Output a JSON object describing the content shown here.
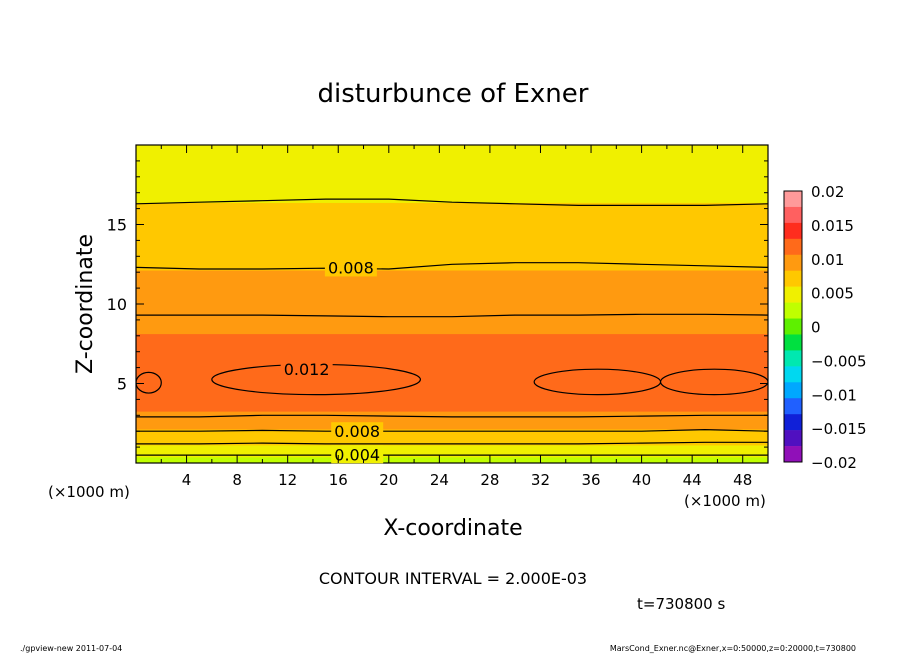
{
  "chart_data": {
    "type": "heatmap",
    "title": "disturbunce of Exner",
    "xlabel": "X-coordinate",
    "ylabel": "Z-coordinate",
    "x_unit": "(×1000 m)",
    "y_unit": "(×1000 m)",
    "xlim": [
      0,
      50
    ],
    "ylim": [
      0,
      20
    ],
    "x_ticks": [
      4,
      8,
      12,
      16,
      20,
      24,
      28,
      32,
      36,
      40,
      44,
      48
    ],
    "y_ticks": [
      5,
      10,
      15
    ],
    "contour_interval_text": "CONTOUR INTERVAL = 2.000E-03",
    "time_text": "t=730800 s",
    "contour_labels": [
      {
        "text": "0.008",
        "x": 17,
        "z": 12.3
      },
      {
        "text": "0.012",
        "x": 13.5,
        "z": 5.9
      },
      {
        "text": "0.008",
        "x": 17.5,
        "z": 2.0
      },
      {
        "text": "0.004",
        "x": 17.5,
        "z": 0.55
      }
    ],
    "profile": [
      {
        "z": 0.0,
        "v": 0.001
      },
      {
        "z": 0.5,
        "v": 0.004
      },
      {
        "z": 1.0,
        "v": 0.0055
      },
      {
        "z": 1.5,
        "v": 0.007
      },
      {
        "z": 2.0,
        "v": 0.008
      },
      {
        "z": 2.6,
        "v": 0.0095
      },
      {
        "z": 3.2,
        "v": 0.0105
      },
      {
        "z": 4.0,
        "v": 0.0115
      },
      {
        "z": 5.0,
        "v": 0.0118
      },
      {
        "z": 6.0,
        "v": 0.0117
      },
      {
        "z": 7.0,
        "v": 0.0113
      },
      {
        "z": 8.0,
        "v": 0.0107
      },
      {
        "z": 9.0,
        "v": 0.01
      },
      {
        "z": 10.0,
        "v": 0.0096
      },
      {
        "z": 11.0,
        "v": 0.009
      },
      {
        "z": 12.0,
        "v": 0.0083
      },
      {
        "z": 13.0,
        "v": 0.0077
      },
      {
        "z": 14.0,
        "v": 0.0071
      },
      {
        "z": 15.0,
        "v": 0.0066
      },
      {
        "z": 16.0,
        "v": 0.0061
      },
      {
        "z": 17.0,
        "v": 0.0056
      },
      {
        "z": 18.0,
        "v": 0.0053
      },
      {
        "z": 19.0,
        "v": 0.005
      },
      {
        "z": 20.0,
        "v": 0.0048
      }
    ],
    "contour_levels": [
      {
        "level": 0.004,
        "z": [
          0.5,
          0.5,
          0.5,
          0.5,
          0.5,
          0.5,
          0.5,
          0.5,
          0.5,
          0.5,
          0.5
        ]
      },
      {
        "level": 0.006,
        "z": [
          1.2,
          1.2,
          1.25,
          1.2,
          1.2,
          1.2,
          1.2,
          1.2,
          1.25,
          1.3,
          1.3
        ]
      },
      {
        "level": 0.008,
        "z": [
          2.0,
          2.0,
          2.05,
          2.0,
          2.0,
          2.0,
          2.0,
          2.0,
          2.0,
          2.1,
          2.0
        ]
      },
      {
        "level": 0.01,
        "z": [
          2.9,
          2.9,
          3.0,
          3.0,
          2.95,
          2.9,
          2.9,
          2.9,
          2.95,
          3.0,
          3.0
        ]
      },
      {
        "level": 0.01,
        "z": [
          9.3,
          9.3,
          9.3,
          9.25,
          9.2,
          9.2,
          9.3,
          9.3,
          9.35,
          9.35,
          9.3
        ]
      },
      {
        "level": 0.008,
        "z": [
          12.3,
          12.2,
          12.2,
          12.25,
          12.2,
          12.5,
          12.6,
          12.6,
          12.5,
          12.4,
          12.3
        ]
      },
      {
        "level": 0.006,
        "z": [
          16.3,
          16.4,
          16.5,
          16.6,
          16.6,
          16.4,
          16.3,
          16.2,
          16.2,
          16.2,
          16.3
        ]
      }
    ],
    "blobs_0012": [
      {
        "x": [
          0,
          2
        ],
        "z": [
          4.4,
          5.7
        ]
      },
      {
        "x": [
          6,
          22.5
        ],
        "z": [
          4.3,
          6.2
        ]
      },
      {
        "x": [
          31.5,
          41.5
        ],
        "z": [
          4.3,
          5.9
        ]
      },
      {
        "x": [
          41.5,
          50
        ],
        "z": [
          4.3,
          5.9
        ]
      }
    ],
    "colorbar": {
      "min": -0.02,
      "max": 0.02,
      "tick_labels": [
        "0.02",
        "0.015",
        "0.01",
        "0.005",
        "0",
        "−0.005",
        "−0.01",
        "−0.015",
        "−0.02"
      ],
      "tick_values": [
        0.02,
        0.015,
        0.01,
        0.005,
        0,
        -0.005,
        -0.01,
        -0.015,
        -0.02
      ],
      "colors": [
        "#ff9a9a",
        "#ff6060",
        "#ff2d1e",
        "#ff6a1a",
        "#ff9a10",
        "#ffc800",
        "#f0f000",
        "#c0ff00",
        "#5ef000",
        "#00e040",
        "#00e8b0",
        "#00d8f0",
        "#00a8ff",
        "#2060ff",
        "#1020d8",
        "#5010c0",
        "#9010b8"
      ]
    }
  },
  "footer": {
    "left": "./gpview-new  2011-07-04",
    "right": "MarsCond_Exner.nc@Exner,x=0:50000,z=0:20000,t=730800"
  }
}
